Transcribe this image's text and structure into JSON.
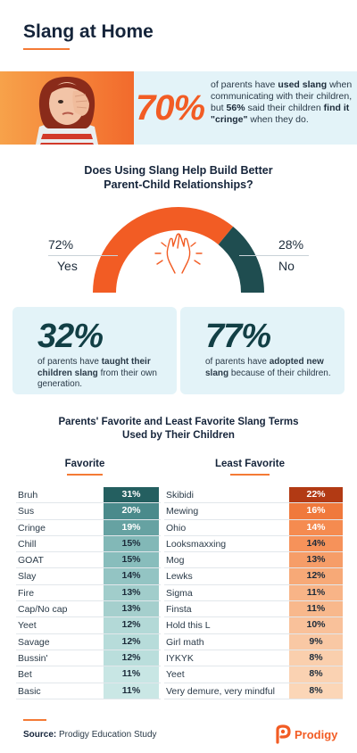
{
  "title": "Slang at Home",
  "hero": {
    "stat": "70%",
    "t1": "of parents have ",
    "b1": "used slang",
    "t2": " when communicating with their children, but ",
    "b2": "56%",
    "t3": " said their children ",
    "b3": "find it \"cringe\"",
    "t4": " when they do."
  },
  "question": {
    "line1": "Does Using Slang Help Build Better",
    "line2": "Parent-Child Relationships?"
  },
  "gauge": {
    "yes_pct": "72%",
    "yes_label": "Yes",
    "no_pct": "28%",
    "no_label": "No",
    "yes_value": 72,
    "yes_color": "#f25c24",
    "no_color": "#1f4d50"
  },
  "cards": [
    {
      "stat": "32%",
      "t1": "of parents have ",
      "b1": "taught their children slang",
      "t2": " from their own generation."
    },
    {
      "stat": "77%",
      "t1": "of parents have ",
      "b1": "adopted new slang",
      "t2": " because of their children."
    }
  ],
  "table": {
    "title1": "Parents' Favorite and Least Favorite Slang Terms",
    "title2": "Used by Their Children",
    "favorite_head": "Favorite",
    "least_head": "Least Favorite",
    "favorite": [
      {
        "term": "Bruh",
        "value": "31%"
      },
      {
        "term": "Sus",
        "value": "20%"
      },
      {
        "term": "Cringe",
        "value": "19%"
      },
      {
        "term": "Chill",
        "value": "15%"
      },
      {
        "term": "GOAT",
        "value": "15%"
      },
      {
        "term": "Slay",
        "value": "14%"
      },
      {
        "term": "Fire",
        "value": "13%"
      },
      {
        "term": "Cap/No cap",
        "value": "13%"
      },
      {
        "term": "Yeet",
        "value": "12%"
      },
      {
        "term": "Savage",
        "value": "12%"
      },
      {
        "term": "Bussin'",
        "value": "12%"
      },
      {
        "term": "Bet",
        "value": "11%"
      },
      {
        "term": "Basic",
        "value": "11%"
      }
    ],
    "least": [
      {
        "term": "Skibidi",
        "value": "22%"
      },
      {
        "term": "Mewing",
        "value": "16%"
      },
      {
        "term": "Ohio",
        "value": "14%"
      },
      {
        "term": "Looksmaxxing",
        "value": "14%"
      },
      {
        "term": "Mog",
        "value": "13%"
      },
      {
        "term": "Lewks",
        "value": "12%"
      },
      {
        "term": "Sigma",
        "value": "11%"
      },
      {
        "term": "Finsta",
        "value": "11%"
      },
      {
        "term": "Hold this L",
        "value": "10%"
      },
      {
        "term": "Girl math",
        "value": "9%"
      },
      {
        "term": "IYKYK",
        "value": "8%"
      },
      {
        "term": "Yeet",
        "value": "8%"
      },
      {
        "term": "Very demure, very mindful",
        "value": "8%"
      }
    ],
    "favorite_colors": [
      "#245f60",
      "#4a8a8b",
      "#66a2a2",
      "#82b8b7",
      "#88bdbc",
      "#93c4c3",
      "#a1cdcb",
      "#a5cfcd",
      "#b3d9d7",
      "#b7dcda",
      "#badedc",
      "#c8e6e4",
      "#cae7e5"
    ],
    "least_colors": [
      "#b23a14",
      "#f0793c",
      "#f58b50",
      "#f6925a",
      "#f69d68",
      "#f7a977",
      "#f8b487",
      "#f8b88c",
      "#f9c19a",
      "#f9c8a4",
      "#facfad",
      "#fad2b2",
      "#fbd6b7"
    ]
  },
  "footer": {
    "source_label": "Source:",
    "source_text": " Prodigy Education Study",
    "logo_text": "Prodigy",
    "brand_color": "#f25c24"
  }
}
